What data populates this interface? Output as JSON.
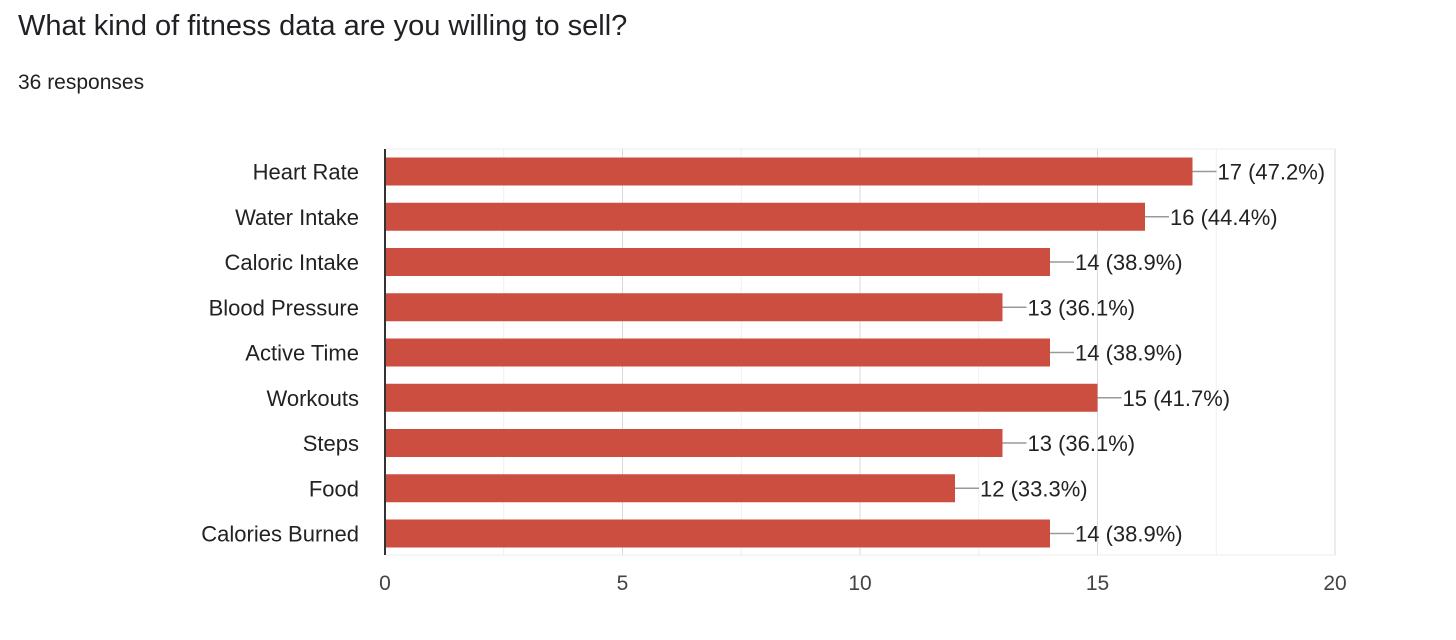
{
  "header": {
    "title": "What kind of fitness data are you willing to sell?",
    "responses": "36 responses"
  },
  "colors": {
    "bar": "#cc4e40",
    "grid": "#e6e6e6",
    "axis": "#333333",
    "leader": "#999999"
  },
  "chart_data": {
    "type": "bar",
    "orientation": "horizontal",
    "title": "What kind of fitness data are you willing to sell?",
    "categories": [
      "Heart Rate",
      "Water Intake",
      "Caloric Intake",
      "Blood Pressure",
      "Active Time",
      "Workouts",
      "Steps",
      "Food",
      "Calories Burned"
    ],
    "values": [
      17,
      16,
      14,
      13,
      14,
      15,
      13,
      12,
      14
    ],
    "value_labels": [
      "17 (47.2%)",
      "16 (44.4%)",
      "14 (38.9%)",
      "13 (36.1%)",
      "14 (38.9%)",
      "15 (41.7%)",
      "13 (36.1%)",
      "12 (33.3%)",
      "14 (38.9%)"
    ],
    "xlim": [
      0,
      20
    ],
    "xticks": [
      0,
      5,
      10,
      15,
      20
    ],
    "grid": true,
    "legend": "none"
  }
}
